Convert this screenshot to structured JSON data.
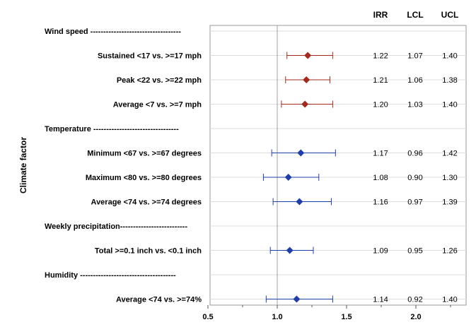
{
  "chart_data": {
    "type": "forest",
    "ylabel": "Climate factor",
    "x_ticks": [
      "0.5",
      "1.0",
      "1.5",
      "2.0"
    ],
    "xlim": [
      0.5,
      2.4
    ],
    "reference_line": 1.0,
    "column_headers": [
      "IRR",
      "LCL",
      "UCL"
    ],
    "colors": {
      "wind": "#a52a1e",
      "other": "#1f3fa8",
      "reference": "#a0a0a0",
      "grid": "#dddddd"
    },
    "rows": [
      {
        "label": "Wind speed -----------------------------------",
        "header": true
      },
      {
        "label": "Sustained  <17 vs. >=17 mph",
        "irr": 1.22,
        "lcl": 1.07,
        "ucl": 1.4,
        "irr_text": "1.22",
        "lcl_text": "1.07",
        "ucl_text": "1.40",
        "group": "wind"
      },
      {
        "label": "Peak <22 vs. >=22 mph",
        "irr": 1.21,
        "lcl": 1.06,
        "ucl": 1.38,
        "irr_text": "1.21",
        "lcl_text": "1.06",
        "ucl_text": "1.38",
        "group": "wind"
      },
      {
        "label": "Average <7 vs. >=7 mph",
        "irr": 1.2,
        "lcl": 1.03,
        "ucl": 1.4,
        "irr_text": "1.20",
        "lcl_text": "1.03",
        "ucl_text": "1.40",
        "group": "wind"
      },
      {
        "label": "Temperature  ---------------------------------",
        "header": true
      },
      {
        "label": "Minimum <67 vs. >=67 degrees",
        "irr": 1.17,
        "lcl": 0.96,
        "ucl": 1.42,
        "irr_text": "1.17",
        "lcl_text": "0.96",
        "ucl_text": "1.42",
        "group": "other"
      },
      {
        "label": "Maximum <80 vs. >=80 degrees",
        "irr": 1.08,
        "lcl": 0.9,
        "ucl": 1.3,
        "irr_text": "1.08",
        "lcl_text": "0.90",
        "ucl_text": "1.30",
        "group": "other"
      },
      {
        "label": "Average <74 vs. >=74 degrees",
        "irr": 1.16,
        "lcl": 0.97,
        "ucl": 1.39,
        "irr_text": "1.16",
        "lcl_text": "0.97",
        "ucl_text": "1.39",
        "group": "other"
      },
      {
        "label": "Weekly precipitation--------------------------",
        "header": true
      },
      {
        "label": "Total >=0.1 inch vs. <0.1 inch",
        "irr": 1.09,
        "lcl": 0.95,
        "ucl": 1.26,
        "irr_text": "1.09",
        "lcl_text": "0.95",
        "ucl_text": "1.26",
        "group": "other"
      },
      {
        "label": "Humidity -------------------------------------",
        "header": true
      },
      {
        "label": "Average <74 vs. >=74%",
        "irr": 1.14,
        "lcl": 0.92,
        "ucl": 1.4,
        "irr_text": "1.14",
        "lcl_text": "0.92",
        "ucl_text": "1.40",
        "group": "other"
      }
    ]
  }
}
